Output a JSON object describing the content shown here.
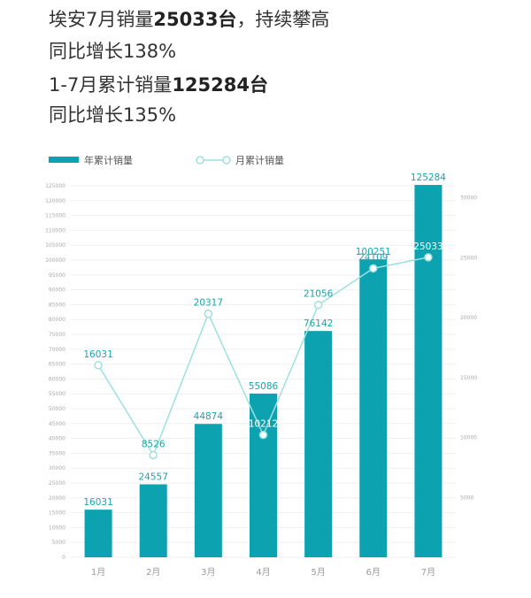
{
  "header": {
    "line1_prefix": "埃安7月销量",
    "line1_value": "25033台",
    "line1_suffix": "，持续攀高",
    "line2": "同比增长138%",
    "line3_prefix": "1-7月累计销量",
    "line3_value": "125284台",
    "line4": "同比增长135%"
  },
  "chart_data": {
    "type": "bar",
    "categories": [
      "1月",
      "2月",
      "3月",
      "4月",
      "5月",
      "6月",
      "7月"
    ],
    "series": [
      {
        "name": "年累计销量",
        "type": "bar",
        "axis": "left",
        "color": "#0da2b0",
        "values": [
          16031,
          24557,
          44874,
          55086,
          76142,
          100251,
          125284
        ]
      },
      {
        "name": "月累计销量",
        "type": "line",
        "axis": "right",
        "color": "#9de1dd",
        "values": [
          16031,
          8526,
          20317,
          10212,
          21056,
          24109,
          25033
        ]
      }
    ],
    "y_left": {
      "range": [
        0,
        125000
      ],
      "ticks": [
        0,
        5000,
        10000,
        15000,
        20000,
        25000,
        30000,
        35000,
        40000,
        45000,
        50000,
        55000,
        60000,
        65000,
        70000,
        75000,
        80000,
        85000,
        90000,
        95000,
        100000,
        105000,
        110000,
        115000,
        120000,
        125000
      ]
    },
    "y_right": {
      "range": [
        0,
        31000
      ],
      "ticks": [
        5000,
        10000,
        15000,
        20000,
        25000,
        30000
      ]
    },
    "grid": true,
    "legend": "top-left"
  }
}
